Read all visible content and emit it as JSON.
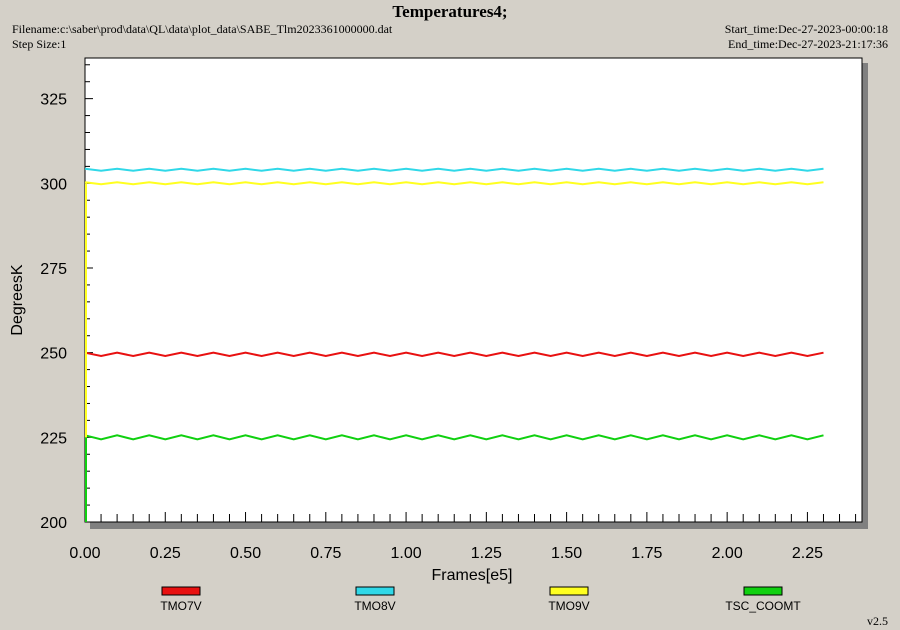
{
  "header": {
    "title": "Temperatures4;",
    "filename": "Filename:c:\\saber\\prod\\data\\QL\\data\\plot_data\\SABE_Tlm2023361000000.dat",
    "step_size": "Step Size:1",
    "start_time": "Start_time:Dec-27-2023-00:00:18",
    "end_time": "End_time:Dec-27-2023-21:17:36",
    "version": "v2.5"
  },
  "chart_data": {
    "type": "line",
    "title": "Temperatures4;",
    "xlabel": "Frames[e5]",
    "ylabel": "DegreesK",
    "xlim": [
      0,
      2.42
    ],
    "ylim": [
      200,
      337
    ],
    "x_ticks": [
      "0.00",
      "0.25",
      "0.50",
      "0.75",
      "1.00",
      "1.25",
      "1.50",
      "1.75",
      "2.00",
      "2.25"
    ],
    "y_ticks": [
      "200",
      "225",
      "250",
      "275",
      "300",
      "325"
    ],
    "legend_position": "bottom",
    "x_end": 2.3,
    "series": [
      {
        "name": "TMO7V",
        "color": "#e81010",
        "level": 249.5,
        "amplitude": 0.5
      },
      {
        "name": "TMO8V",
        "color": "#30d8e8",
        "level": 304.0,
        "amplitude": 0.3
      },
      {
        "name": "TMO9V",
        "color": "#ffff20",
        "level": 300.0,
        "amplitude": 0.3
      },
      {
        "name": "TSC_COOMT",
        "color": "#10d010",
        "level": 225.0,
        "amplitude": 0.6
      }
    ]
  }
}
